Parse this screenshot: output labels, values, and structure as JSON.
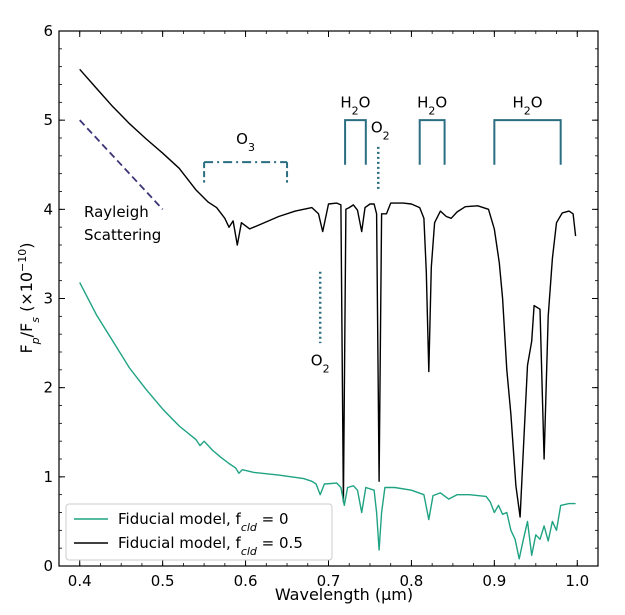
{
  "chart_data": {
    "type": "line",
    "title": "",
    "xlabel": "Wavelength (μm)",
    "ylabel": "Fp/Fs (×10⁻¹⁰)",
    "xlim": [
      0.375,
      1.025
    ],
    "ylim": [
      0,
      6
    ],
    "xticks": [
      0.4,
      0.5,
      0.6,
      0.7,
      0.8,
      0.9,
      1.0
    ],
    "xtick_labels": [
      "0.4",
      "0.5",
      "0.6",
      "0.7",
      "0.8",
      "0.9",
      "1.0"
    ],
    "yticks": [
      0,
      1,
      2,
      3,
      4,
      5,
      6
    ],
    "ytick_labels": [
      "0",
      "1",
      "2",
      "3",
      "4",
      "5",
      "6"
    ],
    "legend": {
      "position": "bottom-left",
      "entries": [
        {
          "label_base": "Fiducial model, f",
          "label_sub": "cld",
          "label_tail": " = 0",
          "color": "#1fa382"
        },
        {
          "label_base": "Fiducial model, f",
          "label_sub": "cld",
          "label_tail": " = 0.5",
          "color": "#000000"
        }
      ]
    },
    "series": [
      {
        "name": "Fiducial model, fcld = 0.5",
        "color": "#000000",
        "points": [
          [
            0.4,
            5.57
          ],
          [
            0.42,
            5.36
          ],
          [
            0.44,
            5.15
          ],
          [
            0.46,
            4.96
          ],
          [
            0.48,
            4.79
          ],
          [
            0.5,
            4.63
          ],
          [
            0.52,
            4.46
          ],
          [
            0.54,
            4.22
          ],
          [
            0.555,
            4.08
          ],
          [
            0.565,
            4.02
          ],
          [
            0.575,
            3.9
          ],
          [
            0.58,
            3.8
          ],
          [
            0.585,
            3.87
          ],
          [
            0.59,
            3.6
          ],
          [
            0.595,
            3.85
          ],
          [
            0.605,
            3.78
          ],
          [
            0.62,
            3.84
          ],
          [
            0.64,
            3.92
          ],
          [
            0.66,
            3.98
          ],
          [
            0.68,
            4.02
          ],
          [
            0.688,
            3.95
          ],
          [
            0.693,
            3.75
          ],
          [
            0.7,
            4.06
          ],
          [
            0.71,
            4.07
          ],
          [
            0.715,
            4.05
          ],
          [
            0.718,
            0.72
          ],
          [
            0.721,
            4.0
          ],
          [
            0.725,
            4.02
          ],
          [
            0.73,
            4.05
          ],
          [
            0.735,
            3.99
          ],
          [
            0.74,
            3.75
          ],
          [
            0.744,
            4.02
          ],
          [
            0.75,
            4.06
          ],
          [
            0.755,
            4.06
          ],
          [
            0.758,
            3.95
          ],
          [
            0.761,
            0.95
          ],
          [
            0.764,
            3.95
          ],
          [
            0.77,
            3.95
          ],
          [
            0.775,
            4.07
          ],
          [
            0.79,
            4.07
          ],
          [
            0.8,
            4.06
          ],
          [
            0.81,
            4.02
          ],
          [
            0.815,
            3.9
          ],
          [
            0.818,
            3.3
          ],
          [
            0.821,
            2.18
          ],
          [
            0.824,
            3.35
          ],
          [
            0.828,
            3.85
          ],
          [
            0.835,
            3.98
          ],
          [
            0.842,
            3.92
          ],
          [
            0.848,
            3.9
          ],
          [
            0.855,
            3.97
          ],
          [
            0.865,
            4.03
          ],
          [
            0.88,
            4.04
          ],
          [
            0.893,
            4.0
          ],
          [
            0.9,
            3.78
          ],
          [
            0.906,
            3.4
          ],
          [
            0.91,
            3.0
          ],
          [
            0.915,
            2.2
          ],
          [
            0.92,
            1.7
          ],
          [
            0.926,
            0.9
          ],
          [
            0.931,
            0.55
          ],
          [
            0.936,
            1.5
          ],
          [
            0.94,
            2.25
          ],
          [
            0.945,
            2.52
          ],
          [
            0.948,
            2.92
          ],
          [
            0.955,
            2.88
          ],
          [
            0.96,
            1.2
          ],
          [
            0.965,
            2.8
          ],
          [
            0.97,
            3.45
          ],
          [
            0.975,
            3.85
          ],
          [
            0.982,
            3.96
          ],
          [
            0.99,
            3.98
          ],
          [
            0.995,
            3.95
          ],
          [
            0.998,
            3.7
          ]
        ]
      },
      {
        "name": "Fiducial model, fcld = 0",
        "color": "#1fa382",
        "points": [
          [
            0.4,
            3.18
          ],
          [
            0.42,
            2.82
          ],
          [
            0.44,
            2.52
          ],
          [
            0.46,
            2.22
          ],
          [
            0.48,
            1.98
          ],
          [
            0.5,
            1.76
          ],
          [
            0.52,
            1.57
          ],
          [
            0.54,
            1.42
          ],
          [
            0.545,
            1.35
          ],
          [
            0.55,
            1.4
          ],
          [
            0.56,
            1.3
          ],
          [
            0.57,
            1.22
          ],
          [
            0.58,
            1.15
          ],
          [
            0.588,
            1.1
          ],
          [
            0.592,
            1.04
          ],
          [
            0.596,
            1.08
          ],
          [
            0.61,
            1.05
          ],
          [
            0.64,
            1.02
          ],
          [
            0.67,
            0.98
          ],
          [
            0.68,
            0.95
          ],
          [
            0.685,
            0.92
          ],
          [
            0.69,
            0.8
          ],
          [
            0.695,
            0.92
          ],
          [
            0.71,
            0.93
          ],
          [
            0.715,
            0.88
          ],
          [
            0.719,
            0.68
          ],
          [
            0.723,
            0.88
          ],
          [
            0.73,
            0.9
          ],
          [
            0.735,
            0.85
          ],
          [
            0.74,
            0.6
          ],
          [
            0.745,
            0.88
          ],
          [
            0.755,
            0.85
          ],
          [
            0.758,
            0.6
          ],
          [
            0.761,
            0.18
          ],
          [
            0.764,
            0.6
          ],
          [
            0.768,
            0.88
          ],
          [
            0.78,
            0.88
          ],
          [
            0.8,
            0.85
          ],
          [
            0.815,
            0.8
          ],
          [
            0.821,
            0.52
          ],
          [
            0.826,
            0.79
          ],
          [
            0.835,
            0.82
          ],
          [
            0.845,
            0.75
          ],
          [
            0.855,
            0.8
          ],
          [
            0.87,
            0.8
          ],
          [
            0.89,
            0.78
          ],
          [
            0.895,
            0.72
          ],
          [
            0.9,
            0.6
          ],
          [
            0.905,
            0.68
          ],
          [
            0.91,
            0.58
          ],
          [
            0.915,
            0.6
          ],
          [
            0.92,
            0.4
          ],
          [
            0.925,
            0.3
          ],
          [
            0.93,
            0.08
          ],
          [
            0.935,
            0.3
          ],
          [
            0.94,
            0.5
          ],
          [
            0.945,
            0.12
          ],
          [
            0.95,
            0.35
          ],
          [
            0.955,
            0.3
          ],
          [
            0.96,
            0.45
          ],
          [
            0.965,
            0.28
          ],
          [
            0.97,
            0.5
          ],
          [
            0.975,
            0.4
          ],
          [
            0.98,
            0.68
          ],
          [
            0.99,
            0.7
          ],
          [
            0.998,
            0.7
          ]
        ]
      }
    ],
    "annotations": {
      "rayleigh": {
        "line1": "Rayleigh",
        "line2": "Scattering",
        "color": "#3b3576"
      },
      "o3": {
        "text_base": "O",
        "text_sub": "3",
        "x_start": 0.55,
        "x_end": 0.65,
        "color": "#2b6e82"
      },
      "o2_low": {
        "text_base": "O",
        "text_sub": "2",
        "x": 0.69,
        "color": "#2b6e82"
      },
      "o2_high": {
        "text_base": "O",
        "text_sub": "2",
        "x": 0.76,
        "color": "#2b6e82"
      },
      "h2o_1": {
        "text_base": "H",
        "text_sub": "2",
        "text_tail": "O",
        "x_start": 0.72,
        "x_end": 0.745,
        "color": "#2b6e82"
      },
      "h2o_2": {
        "text_base": "H",
        "text_sub": "2",
        "text_tail": "O",
        "x_start": 0.81,
        "x_end": 0.84,
        "color": "#2b6e82"
      },
      "h2o_3": {
        "text_base": "H",
        "text_sub": "2",
        "text_tail": "O",
        "x_start": 0.9,
        "x_end": 0.98,
        "color": "#2b6e82"
      }
    }
  }
}
